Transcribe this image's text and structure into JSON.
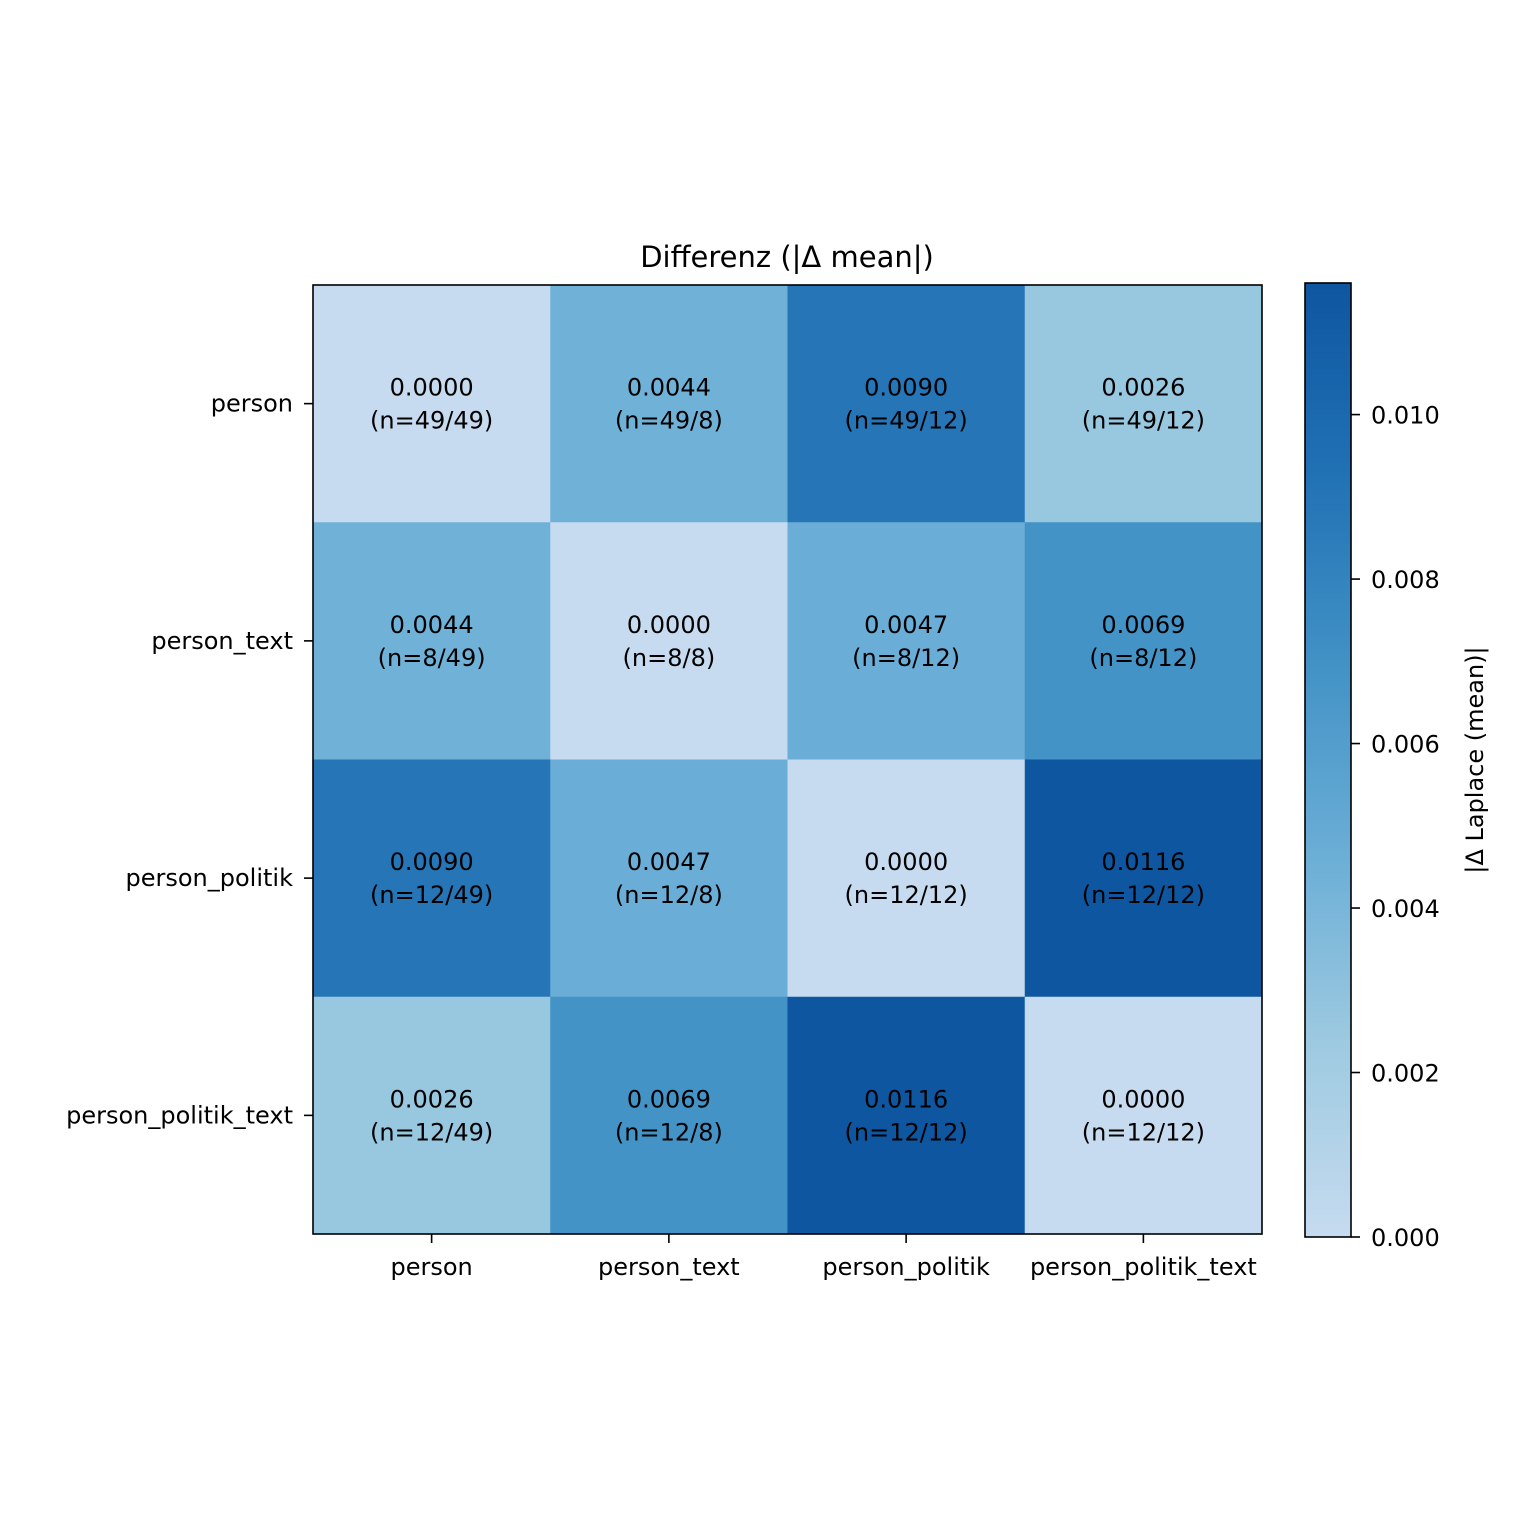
{
  "chart_data": {
    "type": "heatmap",
    "title": "Differenz (|Δ mean|)",
    "x_categories": [
      "person",
      "person_text",
      "person_politik",
      "person_politik_text"
    ],
    "y_categories": [
      "person",
      "person_text",
      "person_politik",
      "person_politik_text"
    ],
    "values": [
      [
        0.0,
        0.0044,
        0.009,
        0.0026
      ],
      [
        0.0044,
        0.0,
        0.0047,
        0.0069
      ],
      [
        0.009,
        0.0047,
        0.0,
        0.0116
      ],
      [
        0.0026,
        0.0069,
        0.0116,
        0.0
      ]
    ],
    "cell_labels": [
      [
        "0.0000",
        "0.0044",
        "0.0090",
        "0.0026"
      ],
      [
        "0.0044",
        "0.0000",
        "0.0047",
        "0.0069"
      ],
      [
        "0.0090",
        "0.0047",
        "0.0000",
        "0.0116"
      ],
      [
        "0.0026",
        "0.0069",
        "0.0116",
        "0.0000"
      ]
    ],
    "n_labels": [
      [
        "(n=49/49)",
        "(n=49/8)",
        "(n=49/12)",
        "(n=49/12)"
      ],
      [
        "(n=8/49)",
        "(n=8/8)",
        "(n=8/12)",
        "(n=8/12)"
      ],
      [
        "(n=12/49)",
        "(n=12/8)",
        "(n=12/12)",
        "(n=12/12)"
      ],
      [
        "(n=12/49)",
        "(n=12/8)",
        "(n=12/12)",
        "(n=12/12)"
      ]
    ],
    "colorbar": {
      "label": "|Δ Laplace (mean)|",
      "vmin": 0.0,
      "vmax": 0.0116,
      "ticks": [
        0.0,
        0.002,
        0.004,
        0.006,
        0.008,
        0.01
      ],
      "tick_labels": [
        "0.000",
        "0.002",
        "0.004",
        "0.006",
        "0.008",
        "0.010"
      ],
      "colors": [
        "#c6dbef",
        "#9ecae1",
        "#6baed6",
        "#4292c6",
        "#2171b5",
        "#0e56a0"
      ]
    },
    "grid": false
  }
}
